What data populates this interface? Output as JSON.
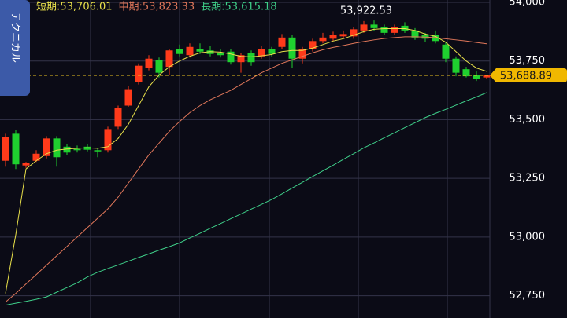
{
  "chart_data": {
    "type": "candlestick",
    "tab_label": "テクニカル",
    "ylim": [
      52655,
      54010
    ],
    "yticks": [
      {
        "value": 52750,
        "label": "52,750"
      },
      {
        "value": 53000,
        "label": "53,000"
      },
      {
        "value": 53250,
        "label": "53,250"
      },
      {
        "value": 53500,
        "label": "53,500"
      },
      {
        "value": 53750,
        "label": "53,750"
      },
      {
        "value": 54000,
        "label": "54,000"
      }
    ],
    "grid": true,
    "up_color": "#ff3a1a",
    "down_color": "#1fd12f",
    "candles": {
      "open": [
        53325,
        53440,
        53305,
        53325,
        53345,
        53420,
        53385,
        53375,
        53385,
        53370,
        53370,
        53470,
        53560,
        53660,
        53720,
        53755,
        53725,
        53800,
        53775,
        53800,
        53795,
        53785,
        53790,
        53745,
        53785,
        53770,
        53800,
        53810,
        53850,
        53760,
        53800,
        53835,
        53845,
        53855,
        53855,
        53880,
        53905,
        53895,
        53870,
        53900,
        53880,
        53860,
        53860,
        53820,
        53760,
        53715,
        53690,
        53680
      ],
      "high": [
        53440,
        53455,
        53320,
        53370,
        53430,
        53430,
        53395,
        53390,
        53395,
        53380,
        53470,
        53560,
        53645,
        53740,
        53775,
        53765,
        53800,
        53820,
        53825,
        53825,
        53815,
        53800,
        53800,
        53785,
        53795,
        53815,
        53810,
        53865,
        53860,
        53810,
        53845,
        53870,
        53875,
        53880,
        53895,
        53920,
        53922.53,
        53905,
        53905,
        53915,
        53890,
        53870,
        53880,
        53830,
        53770,
        53725,
        53705,
        53692
      ],
      "low": [
        53300,
        53290,
        53295,
        53320,
        53335,
        53300,
        53350,
        53360,
        53365,
        53340,
        53360,
        53460,
        53555,
        53650,
        53710,
        53680,
        53690,
        53770,
        53765,
        53780,
        53770,
        53765,
        53735,
        53700,
        53730,
        53760,
        53770,
        53800,
        53720,
        53740,
        53790,
        53825,
        53835,
        53845,
        53845,
        53870,
        53880,
        53860,
        53860,
        53870,
        53840,
        53830,
        53825,
        53745,
        53685,
        53680,
        53665,
        53675
      ],
      "close": [
        53425,
        53310,
        53315,
        53355,
        53420,
        53340,
        53360,
        53370,
        53372,
        53365,
        53460,
        53550,
        53630,
        53730,
        53760,
        53700,
        53795,
        53780,
        53810,
        53790,
        53780,
        53775,
        53745,
        53775,
        53745,
        53800,
        53780,
        53850,
        53760,
        53800,
        53835,
        53850,
        53860,
        53865,
        53885,
        53905,
        53890,
        53870,
        53895,
        53880,
        53850,
        53845,
        53835,
        53760,
        53700,
        53685,
        53675,
        53688.89
      ]
    },
    "lines": [
      {
        "name": "短期:53,706.01",
        "color": "#e8e04a",
        "values": [
          52760,
          53010,
          53290,
          53325,
          53355,
          53370,
          53375,
          53378,
          53380,
          53378,
          53385,
          53420,
          53480,
          53560,
          53640,
          53690,
          53725,
          53750,
          53770,
          53785,
          53790,
          53788,
          53780,
          53770,
          53768,
          53772,
          53778,
          53790,
          53795,
          53795,
          53805,
          53820,
          53835,
          53845,
          53860,
          53875,
          53885,
          53888,
          53888,
          53888,
          53880,
          53865,
          53855,
          53830,
          53790,
          53750,
          53720,
          53706.01
        ]
      },
      {
        "name": "中期:53,823.33",
        "color": "#e0775a",
        "values": [
          52723,
          52760,
          52800,
          52840,
          52880,
          52920,
          52960,
          53000,
          53040,
          53080,
          53120,
          53170,
          53230,
          53290,
          53350,
          53400,
          53450,
          53492,
          53530,
          53560,
          53585,
          53605,
          53625,
          53650,
          53675,
          53700,
          53720,
          53740,
          53755,
          53770,
          53785,
          53798,
          53808,
          53816,
          53825,
          53833,
          53840,
          53846,
          53850,
          53853,
          53853,
          53852,
          53850,
          53845,
          53840,
          53835,
          53829,
          53823.33
        ]
      },
      {
        "name": "長期:53,615.18",
        "color": "#3fd08a",
        "values": [
          52710,
          52718,
          52726,
          52735,
          52745,
          52765,
          52785,
          52805,
          52830,
          52850,
          52866,
          52881,
          52897,
          52913,
          52928,
          52944,
          52959,
          52975,
          52996,
          53016,
          53037,
          53057,
          53078,
          53098,
          53119,
          53139,
          53160,
          53184,
          53209,
          53233,
          53258,
          53282,
          53306,
          53331,
          53355,
          53380,
          53401,
          53423,
          53444,
          53466,
          53487,
          53509,
          53527,
          53544,
          53562,
          53580,
          53597,
          53615.18
        ]
      }
    ],
    "annotations": [
      {
        "value": 53922.53,
        "label": "53,922.53"
      },
      {
        "value": 53688.89,
        "label": "53,688.89"
      }
    ]
  }
}
